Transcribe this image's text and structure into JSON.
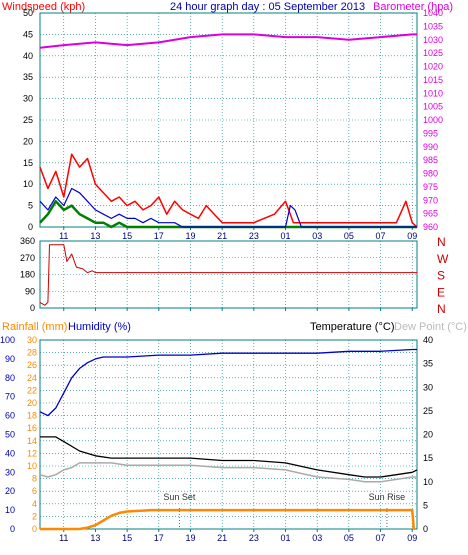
{
  "header": {
    "windspeed_label": "Windspeed (kph)",
    "graph_title": "24 hour graph day : 05 September 2013",
    "barometer_label": "Barometer (hpa)"
  },
  "bottom_header": {
    "rainfall_label": "Rainfall (mm)",
    "humidity_label": "Humidity (%)",
    "temperature_label": "Temperature (°C)",
    "dewpoint_label": "Dew Point (°C)"
  },
  "annotations": {
    "sunset": "Sun Set",
    "sunrise": "Sun Rise"
  },
  "colors": {
    "gust": "#ff0000",
    "avg": "#0000cc",
    "green": "#008000",
    "barometer": "#dd00dd",
    "direction": "#cc0000",
    "humidity": "#0000cc",
    "temperature": "#000000",
    "dewpoint": "#aaaaaa",
    "rainfall": "#ff8800",
    "axis_teal": "#008080",
    "grid": "#008080"
  },
  "chart_data": [
    {
      "id": "wind_barometer",
      "type": "line",
      "title": "24 hour graph day : 05 September 2013",
      "x_ticks": [
        "11",
        "13",
        "15",
        "17",
        "19",
        "21",
        "23",
        "01",
        "03",
        "05",
        "07",
        "09"
      ],
      "x_range_hours": [
        9.5,
        33.3
      ],
      "y_left": {
        "label": "Windspeed (kph)",
        "range": [
          0,
          50
        ],
        "ticks": [
          0,
          5,
          10,
          15,
          20,
          25,
          30,
          35,
          40,
          45,
          50
        ]
      },
      "y_right": {
        "label": "Barometer (hpa)",
        "range": [
          960,
          1040
        ],
        "ticks": [
          960,
          965,
          970,
          975,
          980,
          985,
          990,
          995,
          1000,
          1005,
          1010,
          1015,
          1020,
          1025,
          1030,
          1035,
          1040
        ]
      },
      "series": [
        {
          "name": "Barometer",
          "axis": "right",
          "x": [
            9.5,
            11,
            13,
            15,
            17,
            19,
            21,
            23,
            25,
            27,
            29,
            31,
            33,
            33.3
          ],
          "values": [
            1027,
            1028,
            1029,
            1028,
            1029,
            1031,
            1032,
            1032,
            1031,
            1031,
            1030,
            1031,
            1032,
            1032
          ]
        },
        {
          "name": "Gust",
          "axis": "left",
          "x": [
            9.5,
            10,
            10.5,
            11,
            11.5,
            12,
            12.5,
            13,
            13.5,
            14,
            14.5,
            15,
            15.5,
            16,
            16.5,
            17,
            17.5,
            18,
            18.5,
            19,
            19.5,
            20,
            20.5,
            21,
            23,
            24.3,
            25,
            25.5,
            26,
            32,
            32.6,
            33,
            33.3
          ],
          "values": [
            14,
            9,
            13,
            7,
            17,
            14,
            16,
            10,
            8,
            6,
            7,
            5,
            6,
            4,
            5,
            7,
            3,
            6,
            4,
            3,
            2,
            5,
            3,
            1,
            1,
            3,
            6,
            1,
            1,
            1,
            6,
            1,
            0
          ]
        },
        {
          "name": "Average",
          "axis": "left",
          "x": [
            9.5,
            10,
            10.5,
            11,
            11.5,
            12,
            12.5,
            13,
            13.5,
            14,
            14.5,
            15,
            15.5,
            16,
            16.5,
            17,
            17.5,
            18,
            18.5,
            19,
            25,
            25.3,
            25.6,
            26,
            33,
            33.3
          ],
          "values": [
            6,
            4,
            7,
            5,
            9,
            8,
            6,
            4,
            3,
            2,
            3,
            2,
            2,
            1,
            2,
            1,
            1,
            1,
            0,
            0,
            0,
            5,
            4,
            0,
            0,
            0
          ]
        },
        {
          "name": "Green",
          "axis": "left",
          "x": [
            9.5,
            10,
            10.5,
            11,
            11.5,
            12,
            12.5,
            13,
            13.5,
            14,
            14.5,
            15,
            16,
            17,
            18,
            19,
            33.3
          ],
          "values": [
            1,
            3,
            6,
            4,
            5,
            3,
            2,
            1,
            1,
            0,
            1,
            0,
            0,
            0,
            0,
            0,
            0
          ]
        }
      ]
    },
    {
      "id": "wind_direction",
      "type": "line",
      "y_left": {
        "range": [
          0,
          360
        ],
        "ticks": [
          0,
          90,
          180,
          270,
          360
        ]
      },
      "y_right_labels": [
        "N",
        "W",
        "S",
        "E",
        "N"
      ],
      "series": [
        {
          "name": "Direction",
          "x": [
            9.5,
            9.8,
            10.0,
            10.1,
            11,
            11.2,
            11.5,
            11.8,
            12.2,
            12.5,
            12.8,
            13,
            33.3
          ],
          "values": [
            30,
            15,
            30,
            340,
            340,
            250,
            290,
            220,
            210,
            190,
            200,
            190,
            190
          ]
        }
      ]
    },
    {
      "id": "temp_humidity",
      "type": "line",
      "y_humidity": {
        "label": "Humidity (%)",
        "range": [
          0,
          100
        ],
        "ticks": [
          0,
          10,
          20,
          30,
          40,
          50,
          60,
          70,
          80,
          90,
          100
        ]
      },
      "y_rainfall": {
        "label": "Rainfall (mm)",
        "range": [
          0,
          30
        ],
        "ticks": [
          0,
          2,
          4,
          6,
          8,
          10,
          12,
          14,
          16,
          18,
          20,
          22,
          24,
          26,
          28,
          30
        ]
      },
      "y_temperature": {
        "label": "Temperature (°C)",
        "range": [
          0,
          40
        ],
        "ticks": [
          0,
          5,
          10,
          15,
          20,
          25,
          30,
          35,
          40
        ]
      },
      "series": [
        {
          "name": "Humidity",
          "axis": "humidity",
          "x": [
            9.5,
            10,
            10.5,
            11,
            11.5,
            12,
            12.5,
            13,
            13.5,
            14,
            15,
            17,
            19,
            21,
            23,
            25,
            27,
            29,
            31,
            33,
            33.3
          ],
          "values": [
            62,
            60,
            64,
            72,
            80,
            85,
            88,
            90,
            91,
            91,
            91,
            92,
            92,
            93,
            93,
            93,
            93,
            94,
            94,
            95,
            95
          ]
        },
        {
          "name": "Temperature",
          "axis": "temperature",
          "x": [
            9.5,
            10.5,
            11,
            12,
            13,
            14,
            15,
            17,
            19,
            21,
            23,
            25,
            27,
            29,
            30,
            31,
            32,
            33,
            33.3
          ],
          "values": [
            19.5,
            19.5,
            18.5,
            16.5,
            15.5,
            15,
            15,
            15,
            15,
            14.5,
            14.5,
            14,
            12.5,
            11.5,
            11,
            11,
            11.5,
            12,
            12.5
          ]
        },
        {
          "name": "Dew Point",
          "axis": "temperature",
          "x": [
            9.5,
            10,
            10.5,
            11,
            11.5,
            12,
            13,
            14,
            15,
            17,
            19,
            21,
            23,
            25,
            27,
            29,
            30,
            31,
            32,
            33,
            33.3
          ],
          "values": [
            11.5,
            11,
            11.5,
            12.5,
            13,
            14,
            14,
            14,
            13.5,
            13.5,
            13.5,
            13,
            13,
            12.5,
            11,
            10.5,
            10,
            10,
            10.5,
            11,
            11
          ]
        },
        {
          "name": "Rainfall",
          "axis": "rainfall",
          "x": [
            9.5,
            12,
            12.5,
            13,
            13.5,
            14,
            14.5,
            15,
            15.5,
            16,
            16.5,
            17,
            33,
            33.1
          ],
          "values": [
            0,
            0,
            0.3,
            0.8,
            1.8,
            2.8,
            3.4,
            3.7,
            3.8,
            3.9,
            4,
            4,
            4,
            0
          ]
        }
      ],
      "annotations": [
        {
          "text": "Sun Set",
          "x": 18.3
        },
        {
          "text": "Sun Rise",
          "x": 31.4
        }
      ]
    }
  ]
}
